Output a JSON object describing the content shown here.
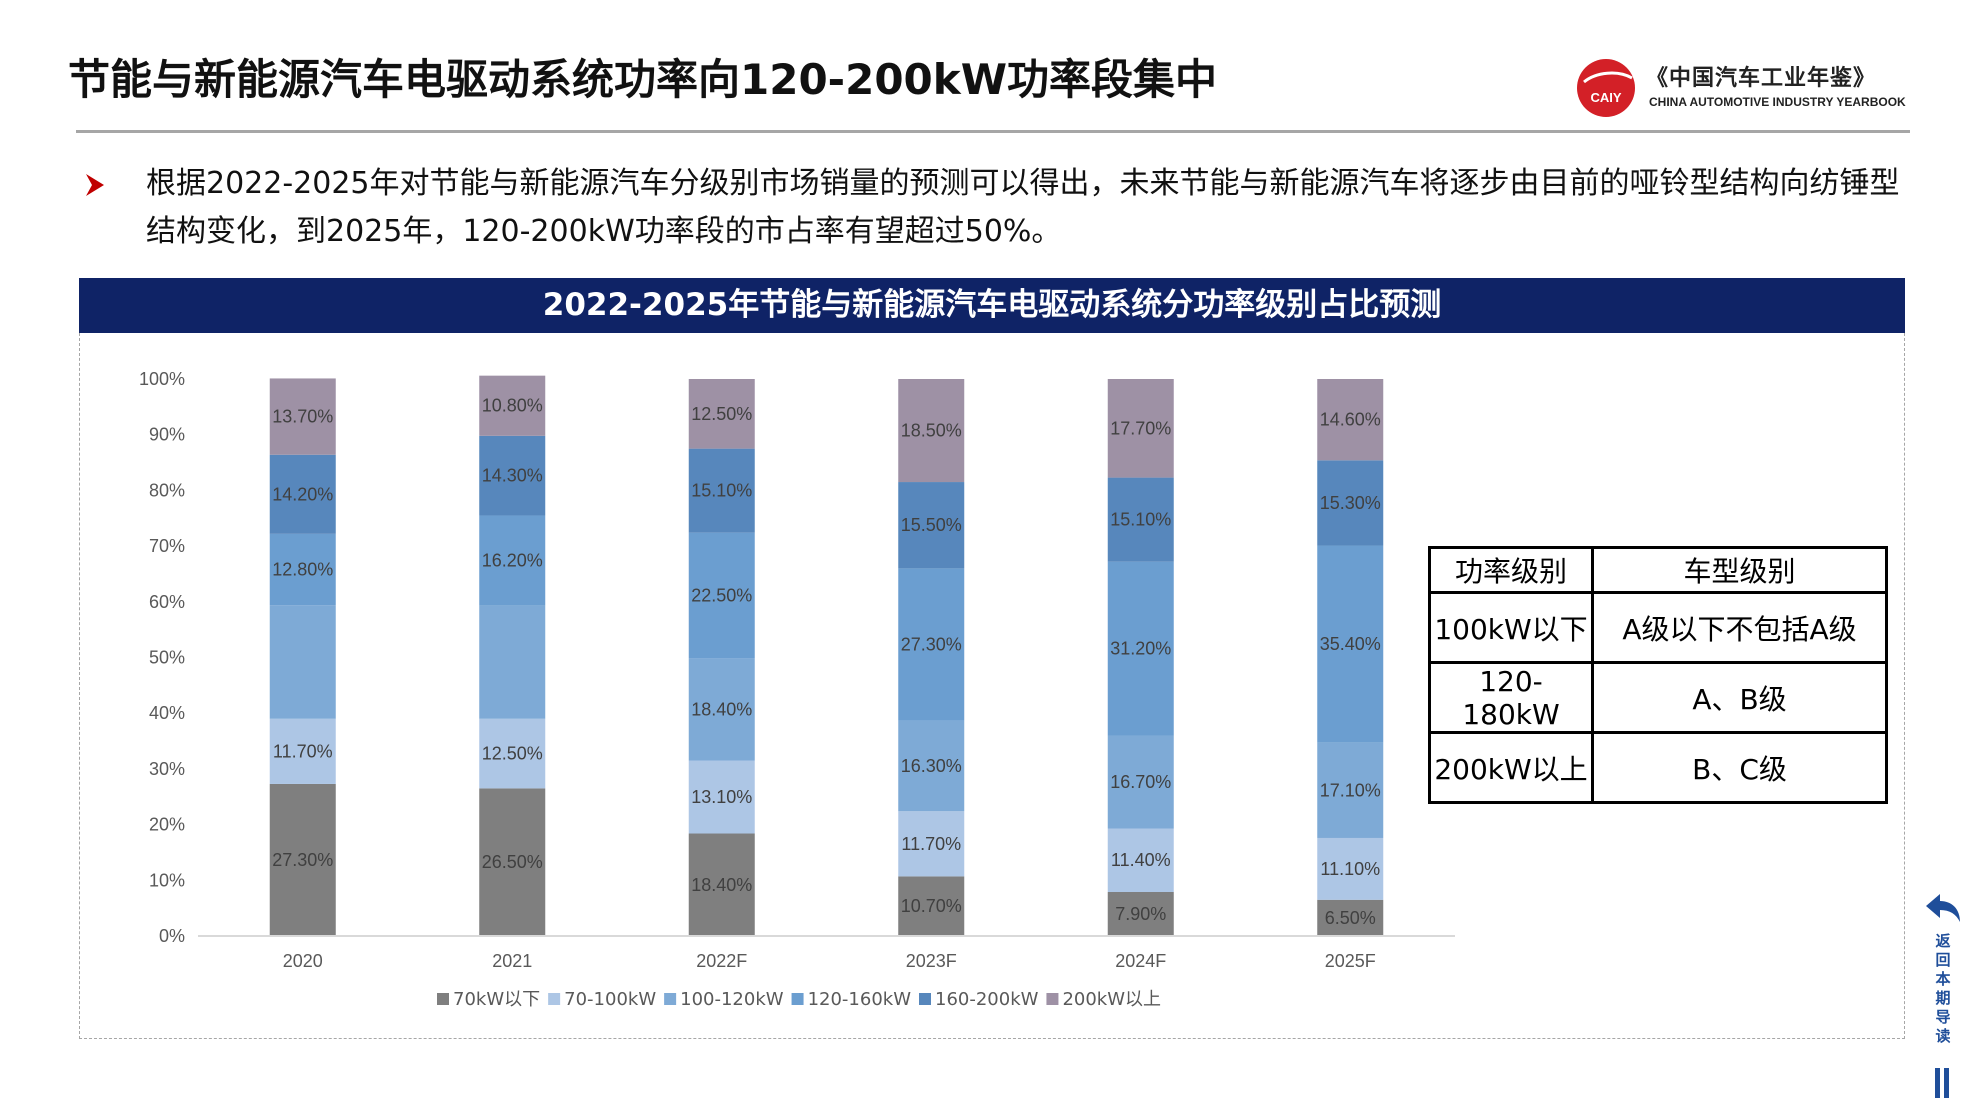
{
  "header": {
    "title": "节能与新能源汽车电驱动系统功率向120-200kW功率段集中",
    "logo_text": "CAIY",
    "yearbook_cn": "《中国汽车工业年鉴》",
    "yearbook_en": "CHINA AUTOMOTIVE INDUSTRY YEARBOOK"
  },
  "summary": {
    "bullet_icon": "arrow-bullet-icon",
    "text": "根据2022-2025年对节能与新能源汽车分级别市场销量的预测可以得出，未来节能与新能源汽车将逐步由目前的哑铃型结构向纺锤型结构变化，到2025年，120-200kW功率段的市占率有望超过50%。"
  },
  "chart_data": {
    "type": "bar",
    "stacked": true,
    "title": "2022-2025年节能与新能源汽车电驱动系统分功率级别占比预测",
    "categories": [
      "2020",
      "2021",
      "2022F",
      "2023F",
      "2024F",
      "2025F"
    ],
    "ylim": [
      0,
      100
    ],
    "yticks": [
      "0%",
      "10%",
      "20%",
      "30%",
      "40%",
      "50%",
      "60%",
      "70%",
      "80%",
      "90%",
      "100%"
    ],
    "grid": false,
    "legend_position": "bottom",
    "series": [
      {
        "name": "70kW以下",
        "color": "#7f7f7f",
        "values": [
          27.3,
          26.5,
          18.4,
          10.7,
          7.9,
          6.5
        ],
        "labels": [
          "27.30%",
          "26.50%",
          "18.40%",
          "10.70%",
          "7.90%",
          "6.50%"
        ]
      },
      {
        "name": "70-100kW",
        "color": "#adc6e5",
        "values": [
          11.7,
          12.5,
          13.1,
          11.7,
          11.4,
          11.1
        ],
        "labels": [
          "11.70%",
          "12.50%",
          "13.10%",
          "11.70%",
          "11.40%",
          "11.10%"
        ]
      },
      {
        "name": "100-120kW",
        "color": "#7eaad6",
        "values": [
          20.4,
          20.3,
          18.4,
          16.3,
          16.7,
          17.1
        ],
        "labels": [
          "",
          "",
          "18.40%",
          "16.30%",
          "16.70%",
          "17.10%"
        ]
      },
      {
        "name": "120-160kW",
        "color": "#6b9ed0",
        "values": [
          12.8,
          16.2,
          22.5,
          27.3,
          31.2,
          35.4
        ],
        "labels": [
          "12.80%",
          "16.20%",
          "22.50%",
          "27.30%",
          "31.20%",
          "35.40%"
        ]
      },
      {
        "name": "160-200kW",
        "color": "#5787bc",
        "values": [
          14.2,
          14.3,
          15.1,
          15.5,
          15.1,
          15.3
        ],
        "labels": [
          "14.20%",
          "14.30%",
          "15.10%",
          "15.50%",
          "15.10%",
          "15.30%"
        ]
      },
      {
        "name": "200kW以上",
        "color": "#9e91a5",
        "values": [
          13.7,
          10.8,
          12.5,
          18.5,
          17.7,
          14.6
        ],
        "labels": [
          "13.70%",
          "10.80%",
          "12.50%",
          "18.50%",
          "17.70%",
          "14.60%"
        ]
      }
    ]
  },
  "mapping_table": {
    "headers": [
      "功率级别",
      "车型级别"
    ],
    "rows": [
      [
        "100kW以下",
        "A级以下不包括A级"
      ],
      [
        "120-180kW",
        "A、B级"
      ],
      [
        "200kW以上",
        "B、C级"
      ]
    ]
  },
  "navigation": {
    "back_label": "返回本期导读",
    "back_icon": "back-arrow-icon",
    "accent_color": "#1f4e9a"
  }
}
